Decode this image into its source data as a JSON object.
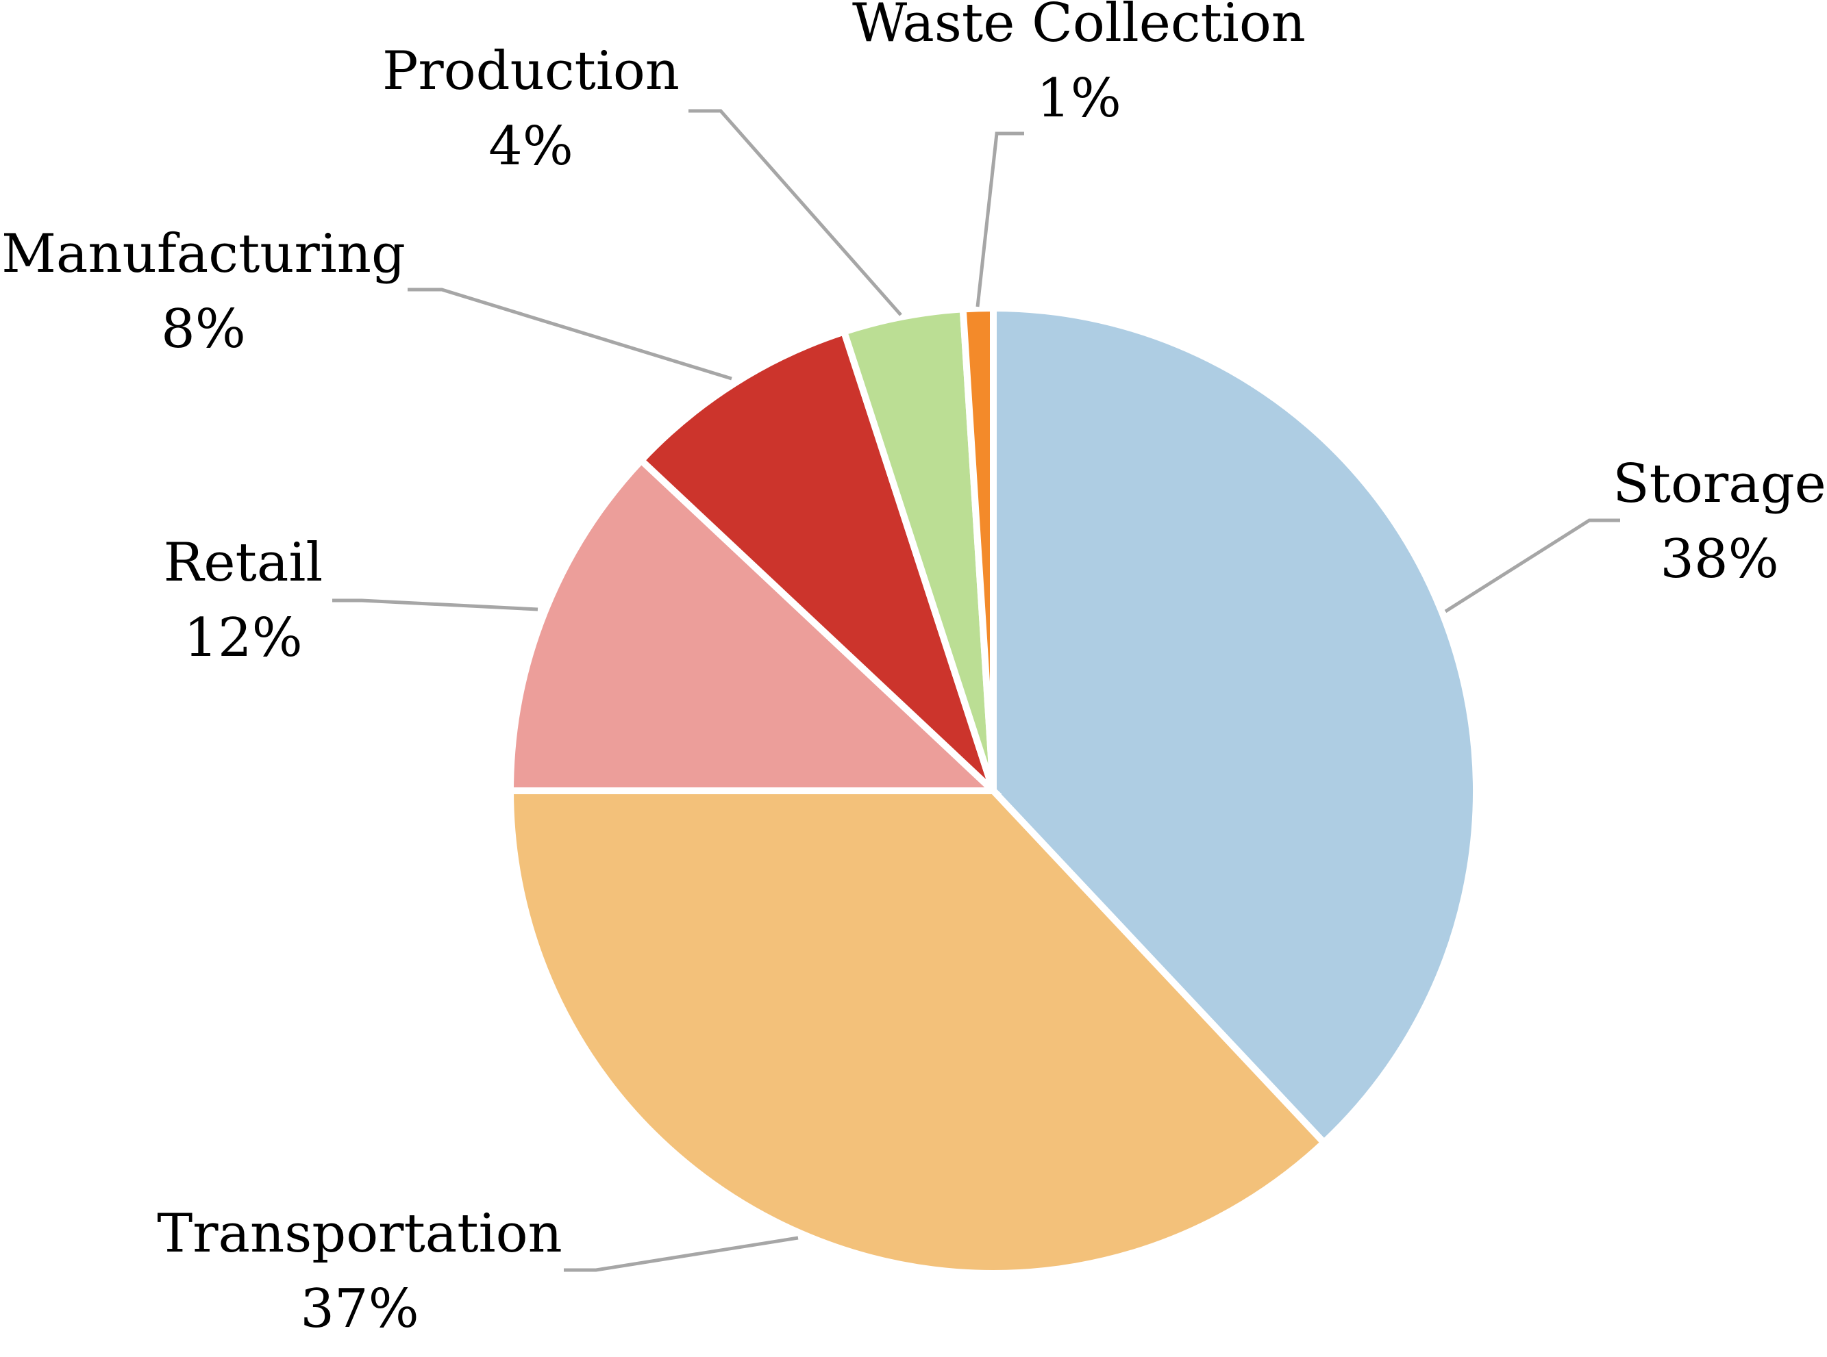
{
  "chart_data": {
    "type": "pie",
    "title": "",
    "start_angle_deg": 90,
    "direction": "clockwise",
    "slices": [
      {
        "name": "Storage",
        "value": 38,
        "label": "38%",
        "color": "#aecde3"
      },
      {
        "name": "Transportation",
        "value": 37,
        "label": "37%",
        "color": "#f3c17a"
      },
      {
        "name": "Retail",
        "value": 12,
        "label": "12%",
        "color": "#ec9e9a"
      },
      {
        "name": "Manufacturing",
        "value": 8,
        "label": "8%",
        "color": "#cc342c"
      },
      {
        "name": "Production",
        "value": 4,
        "label": "4%",
        "color": "#bbde94"
      },
      {
        "name": "Waste Collection",
        "value": 1,
        "label": "1%",
        "color": "#f38a2a"
      }
    ],
    "leader_line_color": "#a6a6a6",
    "legend": "none"
  }
}
